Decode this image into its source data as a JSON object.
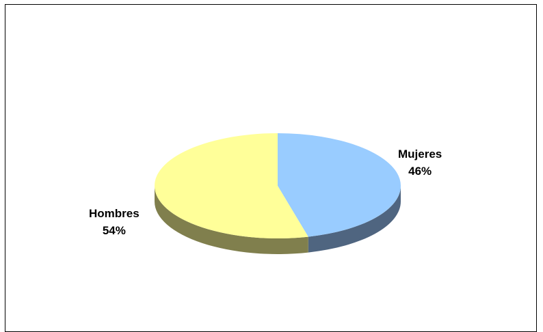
{
  "chart_data": {
    "type": "pie",
    "style": "3d-pie",
    "title": "",
    "categories": [
      "Mujeres",
      "Hombres"
    ],
    "values": [
      46,
      54
    ],
    "data_labels": [
      "46%",
      "54%"
    ],
    "colors": {
      "Mujeres": {
        "top": "#99ccff",
        "side": "#4f6580"
      },
      "Hombres": {
        "top": "#ffff99",
        "side": "#807f4d"
      }
    },
    "start_angle_deg": 90,
    "direction": "clockwise",
    "legend": "none",
    "frame_border": true
  }
}
